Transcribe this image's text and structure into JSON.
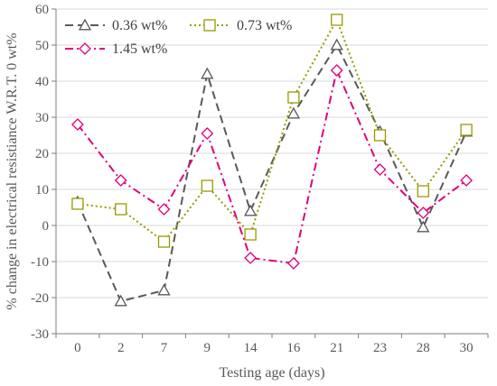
{
  "chart_data": {
    "type": "line",
    "xlabel": "Testing age (days)",
    "ylabel": "% change in electrical resistiance W.R.T. 0 wt%",
    "categories": [
      "0",
      "2",
      "7",
      "9",
      "14",
      "16",
      "21",
      "23",
      "28",
      "30"
    ],
    "ylim": [
      -30,
      60
    ],
    "yticks": [
      -30,
      -20,
      -10,
      0,
      10,
      20,
      30,
      40,
      50,
      60
    ],
    "legend_position": "top-left",
    "series": [
      {
        "name": "0.36 wt%",
        "color": "#595959",
        "dash": "dashed",
        "marker": "triangle",
        "values": [
          6.5,
          -21,
          -18,
          42,
          4,
          31,
          50,
          26,
          -0.5,
          26
        ]
      },
      {
        "name": "0.73 wt%",
        "color": "#999900",
        "dash": "dotted",
        "marker": "square",
        "values": [
          6,
          4.5,
          -4.5,
          11,
          -2.5,
          35.5,
          57,
          25,
          9.5,
          26.5
        ]
      },
      {
        "name": "1.45 wt%",
        "color": "#e0007a",
        "dash": "dash-dot",
        "marker": "diamond",
        "values": [
          28,
          12.5,
          4.5,
          25.5,
          -9,
          -10.5,
          43,
          15.5,
          3.5,
          12.5
        ]
      }
    ]
  }
}
